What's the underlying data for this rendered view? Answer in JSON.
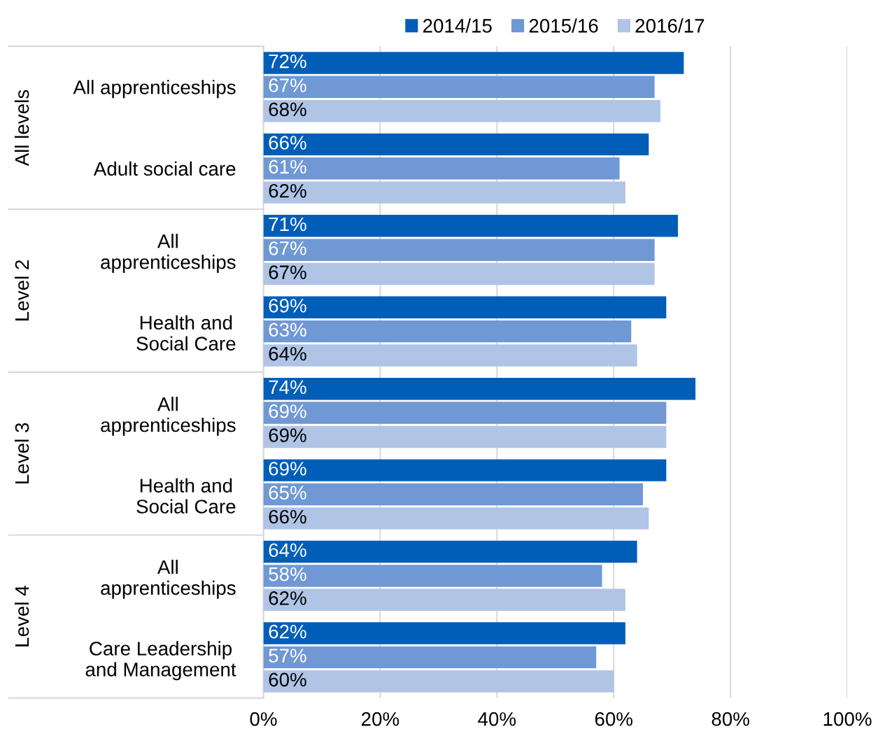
{
  "chart_data": {
    "type": "bar",
    "orientation": "horizontal",
    "categories": [
      "All apprenticeships",
      "Adult social care",
      "All\napprenticeships",
      "Health and\nSocial Care",
      "All\napprenticeships",
      "Health and\nSocial Care",
      "All\napprenticeships",
      "Care Leadership\nand Management"
    ],
    "series": [
      {
        "name": "2014/15",
        "color": "#005eb8",
        "values": [
          72,
          66,
          71,
          69,
          74,
          69,
          64,
          62
        ],
        "value_labels": [
          "72%",
          "66%",
          "71%",
          "69%",
          "74%",
          "69%",
          "64%",
          "62%"
        ]
      },
      {
        "name": "2015/16",
        "color": "#7098d4",
        "values": [
          67,
          61,
          67,
          63,
          69,
          65,
          58,
          57
        ],
        "value_labels": [
          "67%",
          "61%",
          "67%",
          "63%",
          "69%",
          "65%",
          "58%",
          "57%"
        ]
      },
      {
        "name": "2016/17",
        "color": "#b0c4e6",
        "values": [
          68,
          62,
          67,
          64,
          69,
          66,
          62,
          60
        ],
        "value_labels": [
          "68%",
          "62%",
          "67%",
          "64%",
          "69%",
          "66%",
          "62%",
          "60%"
        ]
      }
    ],
    "xlim": [
      0,
      100
    ],
    "xticks": [
      {
        "value": 0,
        "label": "0%"
      },
      {
        "value": 20,
        "label": "20%"
      },
      {
        "value": 40,
        "label": "40%"
      },
      {
        "value": 60,
        "label": "60%"
      },
      {
        "value": 80,
        "label": "80%"
      },
      {
        "value": 100,
        "label": "100%"
      }
    ],
    "annotations": [
      "All levels",
      "Level 2",
      "Level 3",
      "Level 4"
    ],
    "grid": "x",
    "legend": "top"
  }
}
